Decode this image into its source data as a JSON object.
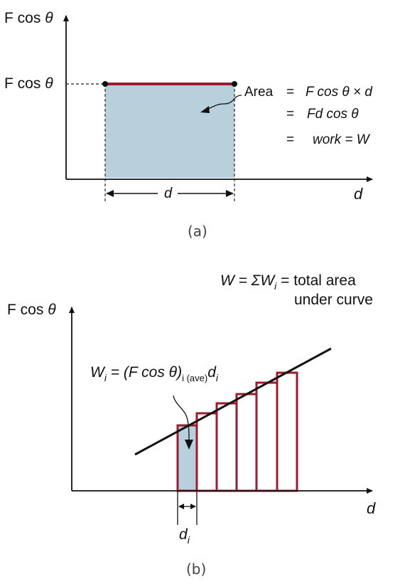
{
  "panel_a": {
    "y_axis_label": {
      "main": "F cos ",
      "theta": "θ"
    },
    "x_axis_label": "d",
    "level_label": {
      "main": "F cos ",
      "theta": "θ"
    },
    "width_label": "d",
    "equation": {
      "line1_lhs": "Area",
      "line1_eq": "=",
      "line1_rhs": "F cos θ × d",
      "line2_eq": "=",
      "line2_rhs": "Fd cos θ",
      "line3_eq": "=",
      "line3_rhs": "work = W"
    },
    "caption": "(a)"
  },
  "panel_b": {
    "top_equation": {
      "line1_start": "W = ΣW",
      "line1_sub": "i",
      "line1_end": " = total area",
      "line2": "under curve"
    },
    "y_axis_label": {
      "main": "F cos ",
      "theta": "θ"
    },
    "x_axis_label": "d",
    "wi_equation": {
      "w": "W",
      "w_sub": "i",
      "middle": " = (F cos θ)",
      "sub2": "i (ave)",
      "d": "d",
      "d_sub": "i"
    },
    "di_label": {
      "d": "d",
      "sub": "i"
    },
    "caption": "(b)"
  },
  "colors": {
    "fill": "#b7d0dc",
    "bar_outline": "#9b1b30",
    "axis": "#111111"
  }
}
